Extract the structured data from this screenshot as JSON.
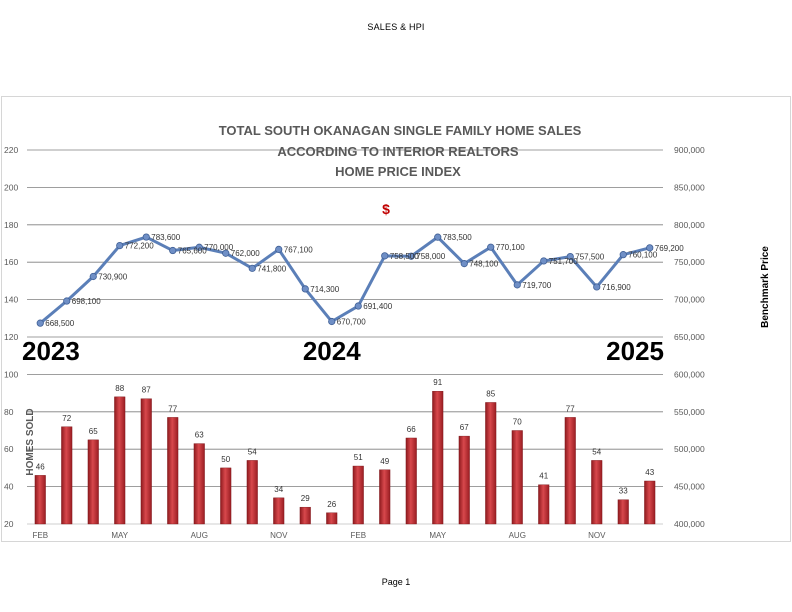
{
  "page": {
    "header": "SALES & HPI",
    "footer": "Page 1"
  },
  "chart_data": {
    "type": "bar+line",
    "title_lines": [
      "TOTAL SOUTH OKANAGAN SINGLE FAMILY HOME SALES",
      "ACCORDING TO INTERIOR REALTORS",
      "HOME PRICE INDEX"
    ],
    "dollar_symbol": "$",
    "ylabel_left": "HOMES SOLD",
    "ylabel_right": "Benchmark Price",
    "left_axis": {
      "ylim": [
        20,
        220
      ],
      "ticks": [
        "20",
        "40",
        "60",
        "80",
        "100",
        "120",
        "140",
        "160",
        "180",
        "200",
        "220"
      ]
    },
    "right_axis": {
      "ylim": [
        400000,
        900000
      ],
      "ticks": [
        "400,000",
        "450,000",
        "500,000",
        "550,000",
        "600,000",
        "650,000",
        "700,000",
        "750,000",
        "800,000",
        "850,000",
        "900,000"
      ]
    },
    "x_tick_labels": [
      {
        "index": 0,
        "label": "FEB"
      },
      {
        "index": 3,
        "label": "MAY"
      },
      {
        "index": 6,
        "label": "AUG"
      },
      {
        "index": 9,
        "label": "NOV"
      },
      {
        "index": 12,
        "label": "FEB"
      },
      {
        "index": 15,
        "label": "MAY"
      },
      {
        "index": 18,
        "label": "AUG"
      },
      {
        "index": 21,
        "label": "NOV"
      }
    ],
    "year_labels": [
      {
        "index": 0,
        "label": "2023"
      },
      {
        "index": 11,
        "label": "2024"
      },
      {
        "index": 23,
        "label": "2025"
      }
    ],
    "series": [
      {
        "name": "Homes Sold",
        "kind": "bar",
        "axis": "left",
        "color": "#c0272d",
        "values": [
          46,
          72,
          65,
          88,
          87,
          77,
          63,
          50,
          54,
          34,
          29,
          26,
          51,
          49,
          66,
          91,
          67,
          85,
          70,
          41,
          77,
          54,
          33,
          43
        ],
        "labels": [
          "46",
          "72",
          "65",
          "88",
          "87",
          "77",
          "63",
          "50",
          "54",
          "34",
          "29",
          "26",
          "51",
          "49",
          "66",
          "91",
          "67",
          "85",
          "70",
          "41",
          "77",
          "54",
          "33",
          "43"
        ]
      },
      {
        "name": "Benchmark Price",
        "kind": "line",
        "axis": "right",
        "color": "#5b7fb8",
        "values": [
          668500,
          698100,
          730900,
          772200,
          783600,
          765600,
          770000,
          762000,
          741800,
          767100,
          714300,
          670700,
          691400,
          758500,
          758000,
          783500,
          748100,
          770100,
          719700,
          751700,
          757500,
          716900,
          760100,
          769200
        ],
        "labels": [
          "668,500",
          "698,100",
          "730,900",
          "772,200",
          "783,600",
          "765,600",
          "770,000",
          "762,000",
          "741,800",
          "767,100",
          "714,300",
          "670,700",
          "691,400",
          "758,500",
          "758,000",
          "783,500",
          "748,100",
          "770,100",
          "719,700",
          "751,700",
          "757,500",
          "716,900",
          "760,100",
          "769,200"
        ]
      }
    ],
    "grid": true
  }
}
